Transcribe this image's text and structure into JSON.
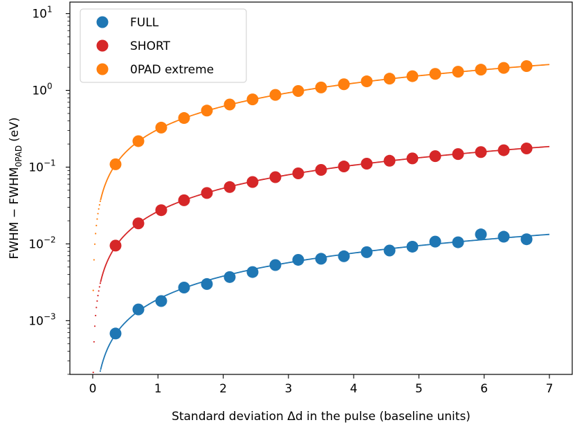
{
  "chart_data": {
    "type": "scatter",
    "xlabel": "Standard deviation  Δd  in the pulse  (baseline units)",
    "ylabel": "FWHM − FWHM",
    "ylabel_subscript": "0PAD",
    "ylabel_unit": "(eV)",
    "xlim": [
      -0.35,
      7.35
    ],
    "ylim_log10": [
      -3.7,
      1.15
    ],
    "y_scale": "log",
    "x_ticks": [
      0,
      1,
      2,
      3,
      4,
      5,
      6,
      7
    ],
    "y_ticks": [
      {
        "value": 0.001,
        "base": "10",
        "exp": "−3"
      },
      {
        "value": 0.01,
        "base": "10",
        "exp": "−2"
      },
      {
        "value": 0.1,
        "base": "10",
        "exp": "−1"
      },
      {
        "value": 1,
        "base": "10",
        "exp": "0"
      },
      {
        "value": 10,
        "base": "10",
        "exp": "1"
      }
    ],
    "legend_position": "top-left",
    "series": [
      {
        "name": "FULL",
        "color": "#1f77b4",
        "fit": {
          "k": 0.0019,
          "p": 1.0
        },
        "x": [
          0.35,
          0.7,
          1.05,
          1.4,
          1.75,
          2.1,
          2.45,
          2.8,
          3.15,
          3.5,
          3.85,
          4.2,
          4.55,
          4.9,
          5.25,
          5.6,
          5.95,
          6.3,
          6.65
        ],
        "y": [
          0.00068,
          0.0014,
          0.0018,
          0.0027,
          0.003,
          0.0037,
          0.0043,
          0.0053,
          0.0062,
          0.0064,
          0.0069,
          0.0078,
          0.0082,
          0.0092,
          0.0107,
          0.0105,
          0.0133,
          0.0124,
          0.0115
        ]
      },
      {
        "name": "SHORT",
        "color": "#d62728",
        "fit": {
          "k": 0.0265,
          "p": 1.0
        },
        "x": [
          0.35,
          0.7,
          1.05,
          1.4,
          1.75,
          2.1,
          2.45,
          2.8,
          3.15,
          3.5,
          3.85,
          4.2,
          4.55,
          4.9,
          5.25,
          5.6,
          5.95,
          6.3,
          6.65
        ],
        "y": [
          0.0095,
          0.0185,
          0.0275,
          0.037,
          0.046,
          0.055,
          0.064,
          0.074,
          0.083,
          0.092,
          0.102,
          0.111,
          0.121,
          0.13,
          0.139,
          0.148,
          0.157,
          0.166,
          0.175
        ]
      },
      {
        "name": "0PAD extreme",
        "color": "#ff7f0e",
        "fit": {
          "k": 0.31,
          "p": 1.0
        },
        "x": [
          0.35,
          0.7,
          1.05,
          1.4,
          1.75,
          2.1,
          2.45,
          2.8,
          3.15,
          3.5,
          3.85,
          4.2,
          4.55,
          4.9,
          5.25,
          5.6,
          5.95,
          6.3,
          6.65
        ],
        "y": [
          0.109,
          0.218,
          0.327,
          0.436,
          0.545,
          0.654,
          0.763,
          0.872,
          0.981,
          1.09,
          1.2,
          1.31,
          1.42,
          1.53,
          1.64,
          1.75,
          1.86,
          1.96,
          2.07
        ]
      }
    ]
  }
}
